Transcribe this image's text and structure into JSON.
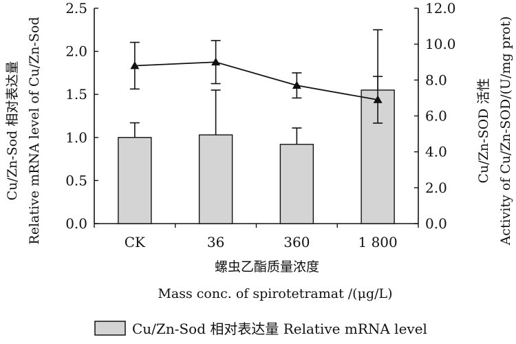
{
  "chart_data": {
    "type": "bar",
    "categories": [
      "CK",
      "36",
      "360",
      "1 800"
    ],
    "series": [
      {
        "name": "Cu/Zn-Sod 相对表达量 Relative mRNA level",
        "kind": "bar",
        "axis": "left",
        "values": [
          1.0,
          1.03,
          0.92,
          1.55
        ],
        "errors": [
          0.17,
          0.52,
          0.19,
          0.7
        ]
      },
      {
        "kind": "line",
        "axis": "right",
        "marker": "triangle",
        "values": [
          8.8,
          9.0,
          7.7,
          6.9
        ],
        "errors": [
          1.3,
          1.2,
          0.7,
          1.3
        ]
      }
    ],
    "xlabel_cn": "螺虫乙酯质量浓度",
    "xlabel_en": "Mass conc. of spirotetramat /(μg/L)",
    "ylabel_left_cn": "Cu/Zn-Sod 相对表达量",
    "ylabel_left_en": "Relative mRNA level of Cu/Zn-Sod",
    "ylabel_right_cn": "Cu/Zn-SOD 活性",
    "ylabel_right_en": "Activity of Cu/Zn-SOD/(U/mg prot)",
    "ylim_left": [
      0,
      2.5
    ],
    "ylim_right": [
      0,
      12
    ],
    "yticks_left": [
      "0.0",
      "0.5",
      "1.0",
      "1.5",
      "2.0",
      "2.5"
    ],
    "yticks_right": [
      "0.0",
      "2.0",
      "4.0",
      "6.0",
      "8.0",
      "10.0",
      "12.0"
    ],
    "grid": false,
    "legend_position": "bottom",
    "colors": {
      "bar_fill": "#d4d4d4",
      "stroke": "#111111"
    }
  }
}
